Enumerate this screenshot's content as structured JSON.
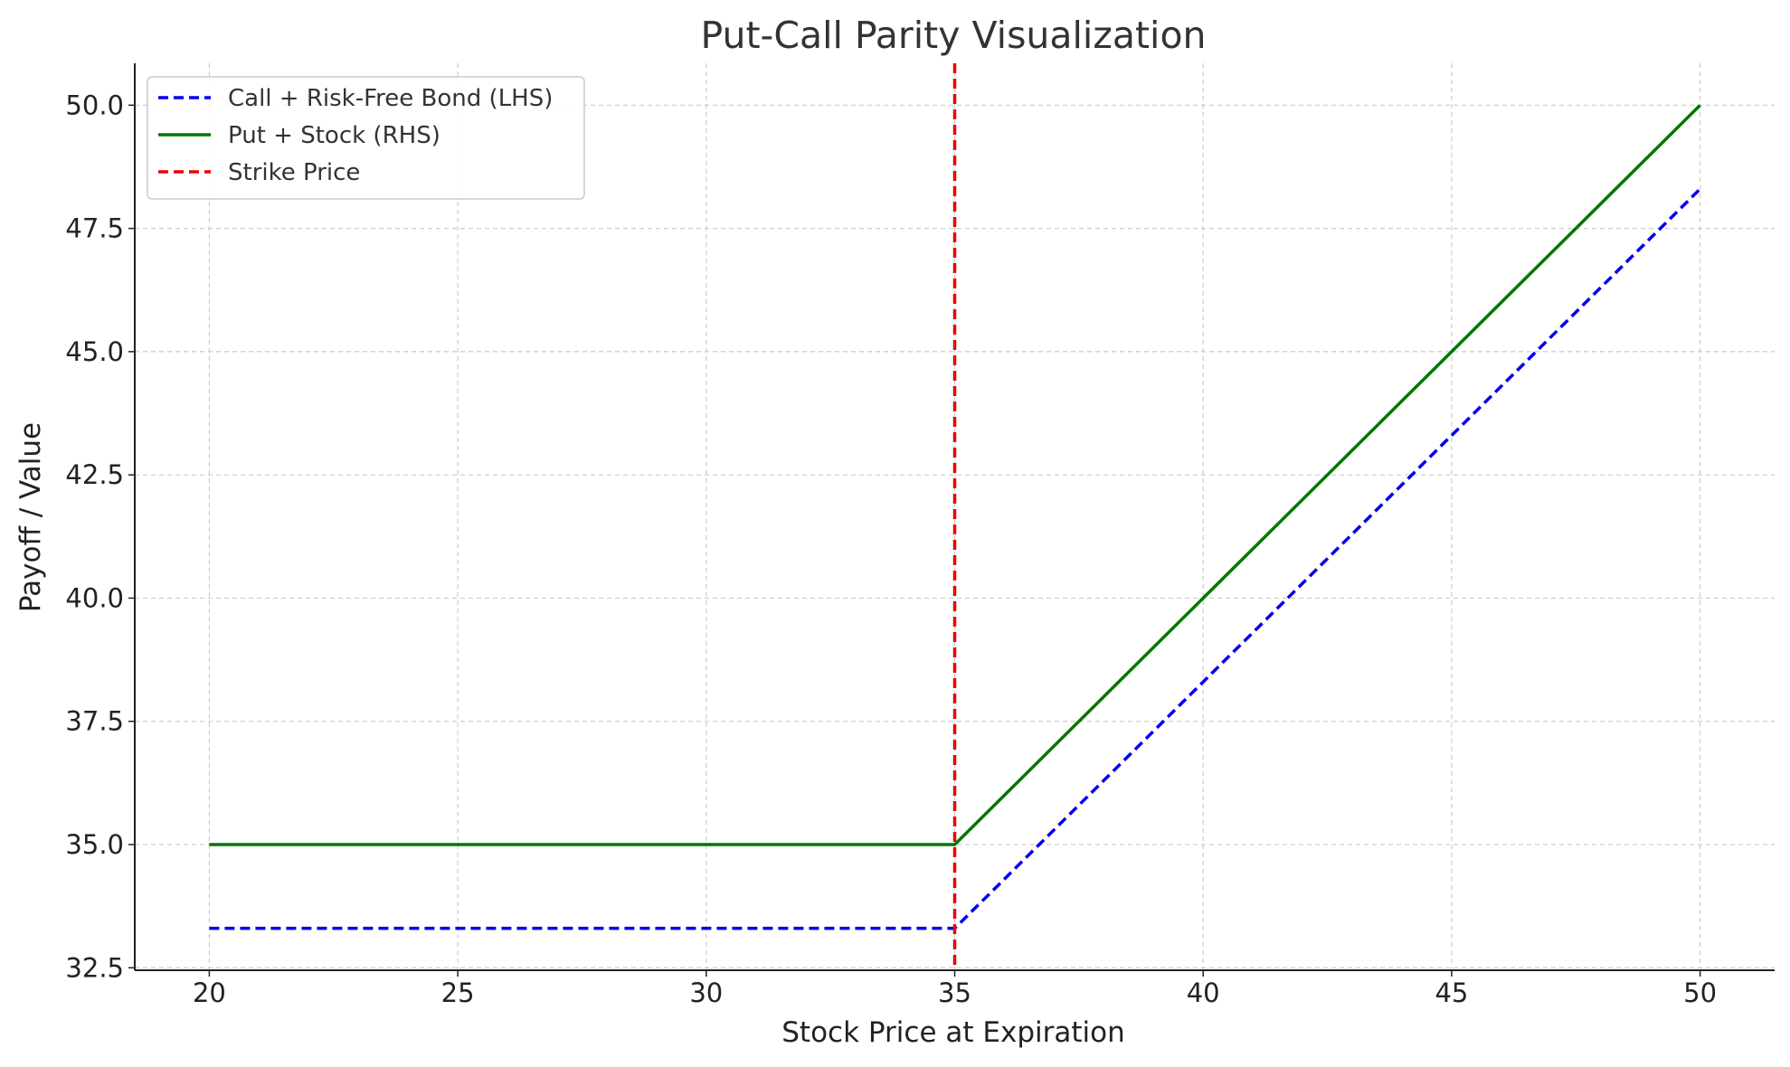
{
  "chart_data": {
    "type": "line",
    "title": "Put-Call Parity Visualization",
    "xlabel": "Stock Price at Expiration",
    "ylabel": "Payoff / Value",
    "xlim": [
      18.5,
      51.5
    ],
    "ylim": [
      32.45,
      50.85
    ],
    "xticks": [
      20,
      25,
      30,
      35,
      40,
      45,
      50
    ],
    "yticks": [
      32.5,
      35.0,
      37.5,
      40.0,
      42.5,
      45.0,
      47.5,
      50.0
    ],
    "xtick_labels": [
      "20",
      "25",
      "30",
      "35",
      "40",
      "45",
      "50"
    ],
    "ytick_labels": [
      "32.5",
      "35.0",
      "37.5",
      "40.0",
      "42.5",
      "45.0",
      "47.5",
      "50.0"
    ],
    "grid": true,
    "legend_position": "upper-left",
    "series": [
      {
        "name": "Call + Risk-Free Bond (LHS)",
        "color": "#0000ee",
        "style": "dashed",
        "x": [
          20,
          35,
          50
        ],
        "y": [
          33.3,
          33.3,
          48.3
        ]
      },
      {
        "name": "Put + Stock (RHS)",
        "color": "#007700",
        "style": "solid",
        "x": [
          20,
          35,
          50
        ],
        "y": [
          35.0,
          35.0,
          50.0
        ]
      }
    ],
    "vlines": [
      {
        "name": "Strike Price",
        "color": "#ee0000",
        "style": "dashed",
        "x": 35
      }
    ]
  }
}
